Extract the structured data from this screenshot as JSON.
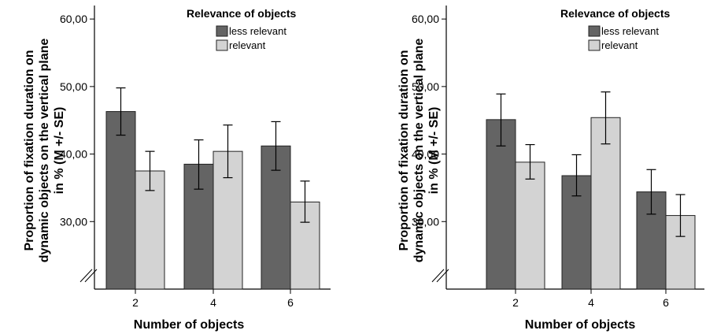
{
  "chart_data": [
    {
      "type": "bar",
      "categories": [
        "2",
        "4",
        "6"
      ],
      "xlabel": "Number of objects",
      "ylabel_lines": [
        "Proportion of fixation duration on",
        "dynamic objects on the vertical plane",
        "in % (M +/- SE)"
      ],
      "yticks": [
        "30,00",
        "40,00",
        "50,00",
        "60,00"
      ],
      "ylim": [
        20,
        62
      ],
      "legend_title": "Relevance of objects",
      "legend_position": "top-right",
      "grid": false,
      "axis_break": true,
      "series": [
        {
          "name": "less relevant",
          "color": "#646464",
          "values": [
            46.3,
            38.5,
            41.2
          ],
          "err_low": [
            42.8,
            34.8,
            37.6
          ],
          "err_high": [
            49.8,
            42.1,
            44.8
          ]
        },
        {
          "name": "relevant",
          "color": "#d3d3d3",
          "values": [
            37.5,
            40.4,
            32.9
          ],
          "err_low": [
            34.6,
            36.5,
            29.9
          ],
          "err_high": [
            40.4,
            44.3,
            36.0
          ]
        }
      ]
    },
    {
      "type": "bar",
      "categories": [
        "2",
        "4",
        "6"
      ],
      "xlabel": "Number of objects",
      "ylabel_lines": [
        "Proportion of fixation duration on",
        "dynamic objects on the vertical plane",
        "in % (M +/- SE)"
      ],
      "yticks": [
        "30,00",
        "40,00",
        "50,00",
        "60,00"
      ],
      "ylim": [
        20,
        62
      ],
      "legend_title": "Relevance of objects",
      "legend_position": "top-right",
      "grid": false,
      "axis_break": true,
      "series": [
        {
          "name": "less relevant",
          "color": "#646464",
          "values": [
            45.1,
            36.8,
            34.4
          ],
          "err_low": [
            41.2,
            33.8,
            31.1
          ],
          "err_high": [
            48.9,
            39.9,
            37.7
          ]
        },
        {
          "name": "relevant",
          "color": "#d3d3d3",
          "values": [
            38.8,
            45.4,
            30.9
          ],
          "err_low": [
            36.3,
            41.5,
            27.8
          ],
          "err_high": [
            41.4,
            49.2,
            34.0
          ]
        }
      ]
    }
  ]
}
